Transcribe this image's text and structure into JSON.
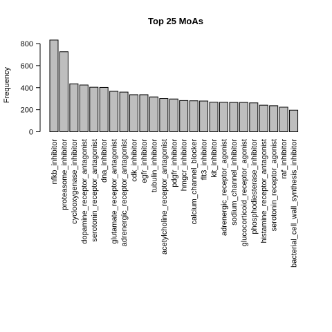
{
  "chart_data": {
    "type": "bar",
    "title": "Top 25 MoAs",
    "xlabel": "",
    "ylabel": "Frequency",
    "ylim": [
      0,
      800
    ],
    "yticks": [
      0,
      200,
      400,
      600,
      800
    ],
    "grid": false,
    "bar_color": "#bebebe",
    "categories": [
      "nfkb_inhibitor",
      "proteasome_inhibitor",
      "cyclooxygenase_inhibitor",
      "dopamine_receptor_antagonist",
      "serotonin_receptor_antagonist",
      "dna_inhibitor",
      "glutamate_receptor_antagonist",
      "adrenergic_receptor_antagonist",
      "cdk_inhibitor",
      "egfr_inhibitor",
      "tubulin_inhibitor",
      "acetylcholine_receptor_antagonist",
      "pdgfr_inhibitor",
      "hmgcr_inhibitor",
      "calcium_channel_blocker",
      "flt3_inhibitor",
      "kit_inhibitor",
      "adrenergic_receptor_agonist",
      "sodium_channel_inhibitor",
      "glucocorticoid_receptor_agonist",
      "phosphodiesterase_inhibitor",
      "histamine_receptor_antagonist",
      "serotonin_receptor_agonist",
      "raf_inhibitor",
      "bacterial_cell_wall_synthesis_inhibitor"
    ],
    "values": [
      832,
      726,
      435,
      424,
      404,
      402,
      367,
      360,
      336,
      336,
      316,
      301,
      297,
      283,
      281,
      279,
      268,
      267,
      266,
      266,
      262,
      241,
      236,
      223,
      196
    ]
  }
}
